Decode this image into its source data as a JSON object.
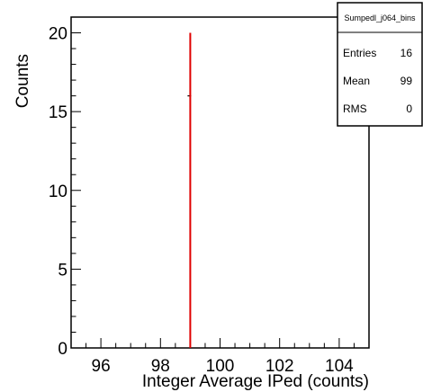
{
  "chart_data": {
    "type": "bar",
    "title": "",
    "xlabel": "Integer Average IPed (counts)",
    "ylabel": "Counts",
    "xlim": [
      95,
      105
    ],
    "ylim": [
      0,
      21
    ],
    "x_ticks": [
      "96",
      "98",
      "100",
      "102",
      "104"
    ],
    "y_ticks": [
      "0",
      "5",
      "10",
      "15",
      "20"
    ],
    "grid": false,
    "bins": [
      {
        "x": 99,
        "value": 16,
        "error": 4
      }
    ],
    "line_color": "#000000",
    "error_color": "#e00000"
  },
  "stats_box": {
    "name": "Sumpedl_j064_bins",
    "rows": [
      {
        "label": "Entries",
        "value": "16"
      },
      {
        "label": "Mean",
        "value": "99"
      },
      {
        "label": "RMS",
        "value": "0"
      }
    ],
    "position": "top-right"
  }
}
